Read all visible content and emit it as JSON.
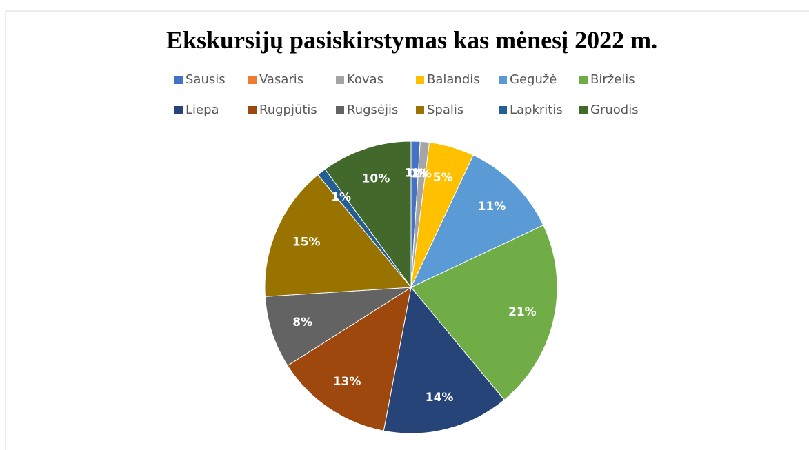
{
  "chart_data": {
    "type": "pie",
    "title": "Ekskursijų pasiskirstymas kas mėnesį 2022 m.",
    "categories": [
      "Sausis",
      "Vasaris",
      "Kovas",
      "Balandis",
      "Gegužė",
      "Birželis",
      "Liepa",
      "Rugpjūtis",
      "Rugsėjis",
      "Spalis",
      "Lapkritis",
      "Gruodis"
    ],
    "values": [
      1,
      0,
      1,
      5,
      11,
      21,
      14,
      13,
      8,
      15,
      1,
      10
    ],
    "value_labels": [
      "1%",
      "0%",
      "1%",
      "5%",
      "11%",
      "21%",
      "14%",
      "13%",
      "8%",
      "15%",
      "1%",
      "10%"
    ],
    "colors": [
      "#4472c4",
      "#ed7d31",
      "#a5a5a5",
      "#ffc000",
      "#5b9bd5",
      "#70ad47",
      "#264478",
      "#9e480e",
      "#636363",
      "#997300",
      "#255e91",
      "#43682b"
    ],
    "legend": "top"
  }
}
